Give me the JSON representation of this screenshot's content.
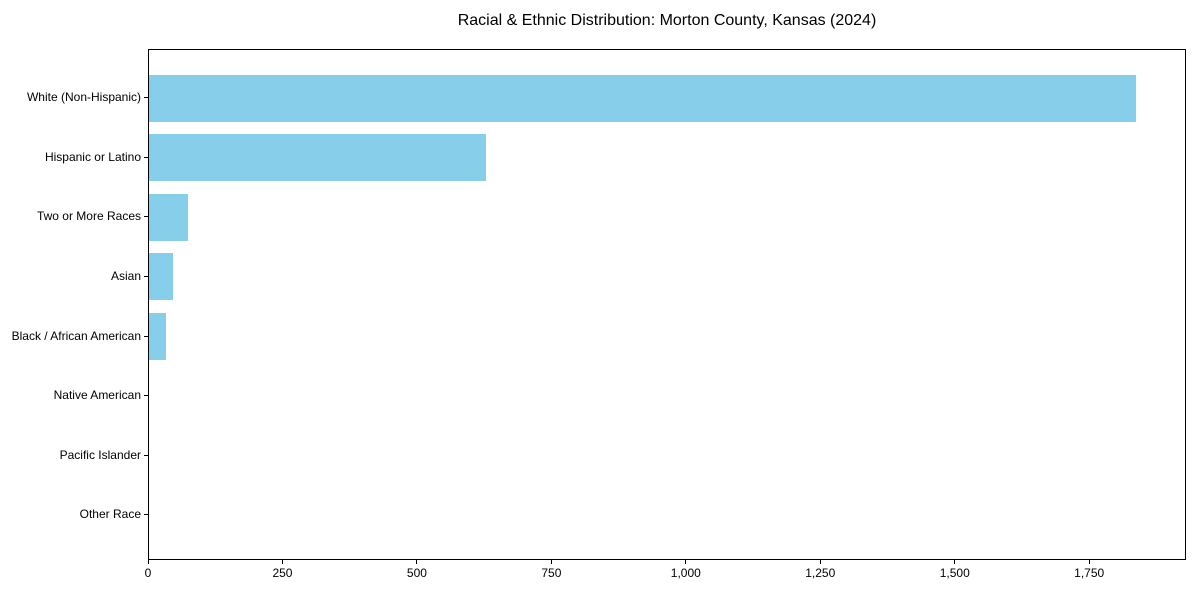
{
  "chart_data": {
    "type": "bar",
    "orientation": "horizontal",
    "title": "Racial & Ethnic Distribution: Morton County, Kansas (2024)",
    "categories": [
      "White (Non-Hispanic)",
      "Hispanic or Latino",
      "Two or More Races",
      "Asian",
      "Black / African American",
      "Native American",
      "Pacific Islander",
      "Other Race"
    ],
    "values": [
      1838,
      628,
      72,
      44,
      32,
      0,
      0,
      0
    ],
    "xlabel": "",
    "ylabel": "",
    "xlim": [
      0,
      1930
    ],
    "xticks": [
      0,
      250,
      500,
      750,
      1000,
      1250,
      1500,
      1750
    ],
    "xtick_labels": [
      "0",
      "250",
      "500",
      "750",
      "1,000",
      "1,250",
      "1,500",
      "1,750"
    ],
    "bar_color": "#87CEEB",
    "axis_color": "#000000",
    "background_color": "#ffffff",
    "grid": false,
    "legend": null
  }
}
